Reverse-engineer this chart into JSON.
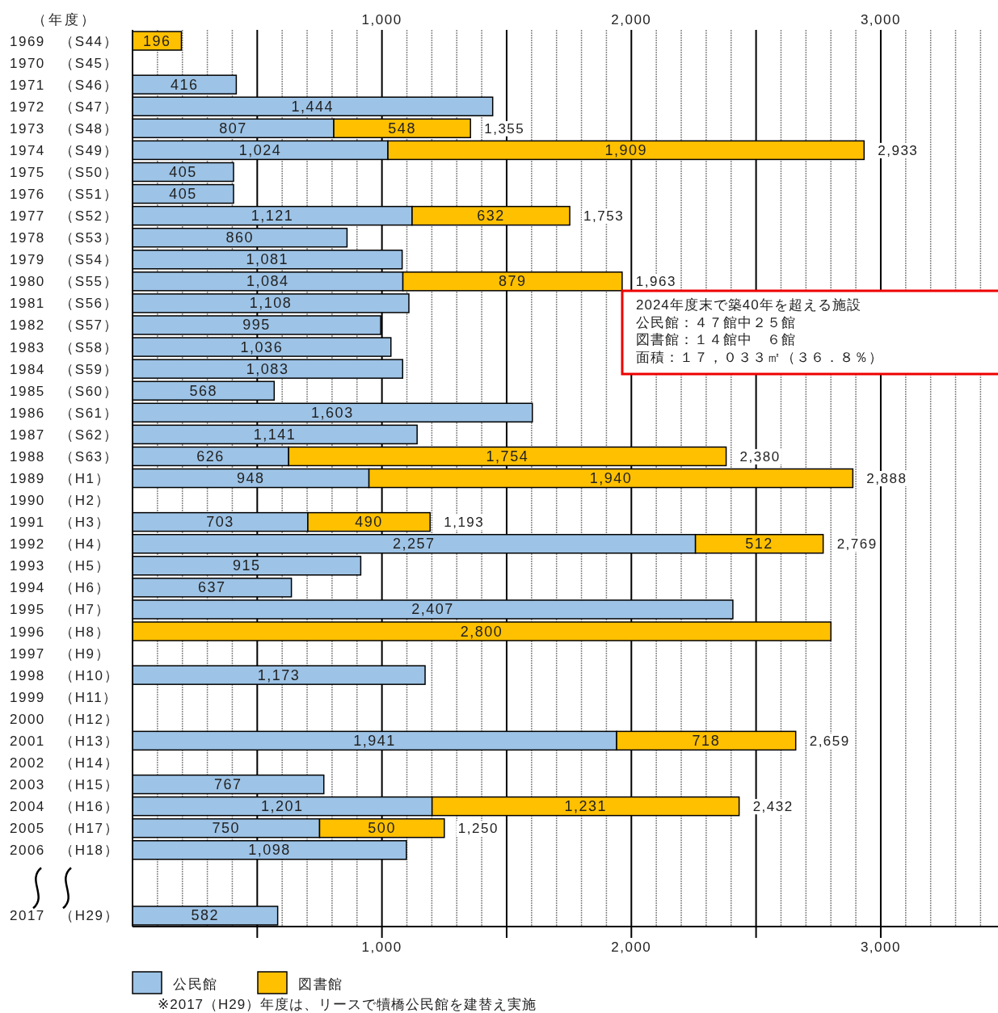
{
  "chart_data": {
    "type": "bar",
    "orientation": "horizontal",
    "stacked": true,
    "ylabel": "（年度）",
    "categories": [
      "1969　（S44）",
      "1970　（S45）",
      "1971　（S46）",
      "1972　（S47）",
      "1973　（S48）",
      "1974　（S49）",
      "1975　（S50）",
      "1976　（S51）",
      "1977　（S52）",
      "1978　（S53）",
      "1979　（S54）",
      "1980　（S55）",
      "1981　（S56）",
      "1982　（S57）",
      "1983　（S58）",
      "1984　（S59）",
      "1985　（S60）",
      "1986　（S61）",
      "1987　（S62）",
      "1988　（S63）",
      "1989　（H1）",
      "1990　（H2）",
      "1991　（H3）",
      "1992　（H4）",
      "1993　（H5）",
      "1994　（H6）",
      "1995　（H7）",
      "1996　（H8）",
      "1997　（H9）",
      "1998　（H10）",
      "1999　（H11）",
      "2000　（H12）",
      "2001　（H13）",
      "2002　（H14）",
      "2003　（H15）",
      "2004　（H16）",
      "2005　（H17）",
      "2006　（H18）",
      null,
      null,
      "2017　（H29）"
    ],
    "series": [
      {
        "name": "公民館",
        "color": "#9dc3e6",
        "values": [
          null,
          null,
          416,
          1444,
          807,
          1024,
          405,
          405,
          1121,
          860,
          1081,
          1084,
          1108,
          995,
          1036,
          1083,
          568,
          1603,
          1141,
          626,
          948,
          null,
          703,
          2257,
          915,
          637,
          2407,
          null,
          null,
          1173,
          null,
          null,
          1941,
          null,
          767,
          1201,
          750,
          1098,
          null,
          null,
          582
        ],
        "value_labels": [
          null,
          null,
          "416",
          "1,444",
          "807",
          "1,024",
          "405",
          "405",
          "1,121",
          "860",
          "1,081",
          "1,084",
          "1,108",
          "995",
          "1,036",
          "1,083",
          "568",
          "1,603",
          "1,141",
          "626",
          "948",
          null,
          "703",
          "2,257",
          "915",
          "637",
          "2,407",
          null,
          null,
          "1,173",
          null,
          null,
          "1,941",
          null,
          "767",
          "1,201",
          "750",
          "1,098",
          null,
          null,
          "582"
        ]
      },
      {
        "name": "図書館",
        "color": "#ffc000",
        "values": [
          196,
          null,
          null,
          null,
          548,
          1909,
          null,
          null,
          632,
          null,
          null,
          879,
          null,
          null,
          null,
          null,
          null,
          null,
          null,
          1754,
          1940,
          null,
          490,
          512,
          null,
          null,
          null,
          2800,
          null,
          null,
          null,
          null,
          718,
          null,
          null,
          1231,
          500,
          null,
          null,
          null,
          null
        ],
        "value_labels": [
          "196",
          null,
          null,
          null,
          "548",
          "1,909",
          null,
          null,
          "632",
          null,
          null,
          "879",
          null,
          null,
          null,
          null,
          null,
          null,
          null,
          "1,754",
          "1,940",
          null,
          "490",
          "512",
          null,
          null,
          null,
          "2,800",
          null,
          null,
          null,
          null,
          "718",
          null,
          null,
          "1,231",
          "500",
          null,
          null,
          null,
          null
        ]
      }
    ],
    "totals": [
      null,
      null,
      null,
      null,
      "1,355",
      "2,933",
      null,
      null,
      "1,753",
      null,
      null,
      "1,963",
      null,
      null,
      null,
      null,
      null,
      null,
      null,
      "2,380",
      "2,888",
      null,
      "1,193",
      "2,769",
      null,
      null,
      null,
      null,
      null,
      null,
      null,
      null,
      "2,659",
      null,
      null,
      "2,432",
      "1,250",
      null,
      null,
      null,
      null
    ],
    "xlim": [
      0,
      3470
    ],
    "xticks": [
      {
        "value": 500,
        "label": null
      },
      {
        "value": 1000,
        "label": "1,000"
      },
      {
        "value": 1500,
        "label": null
      },
      {
        "value": 2000,
        "label": "2,000"
      },
      {
        "value": 2500,
        "label": null
      },
      {
        "value": 3000,
        "label": "3,000"
      }
    ],
    "x2lim": [
      0,
      3470
    ],
    "x2ticks": [
      {
        "value": 1000,
        "label": "1,000"
      },
      {
        "value": 2000,
        "label": "2,000"
      },
      {
        "value": 3000,
        "label": "3,000"
      }
    ],
    "grid": "x",
    "legend": "bottom",
    "annotations": [
      "2024年度末で築40年を超える施設",
      "公民館：４７館中２５館",
      "図書館：１４館中　６館",
      "面積：１７，０３３㎡（３６．８％）",
      "※2017（H29）年度は、リースで犢橋公民館を建替え実施"
    ]
  }
}
